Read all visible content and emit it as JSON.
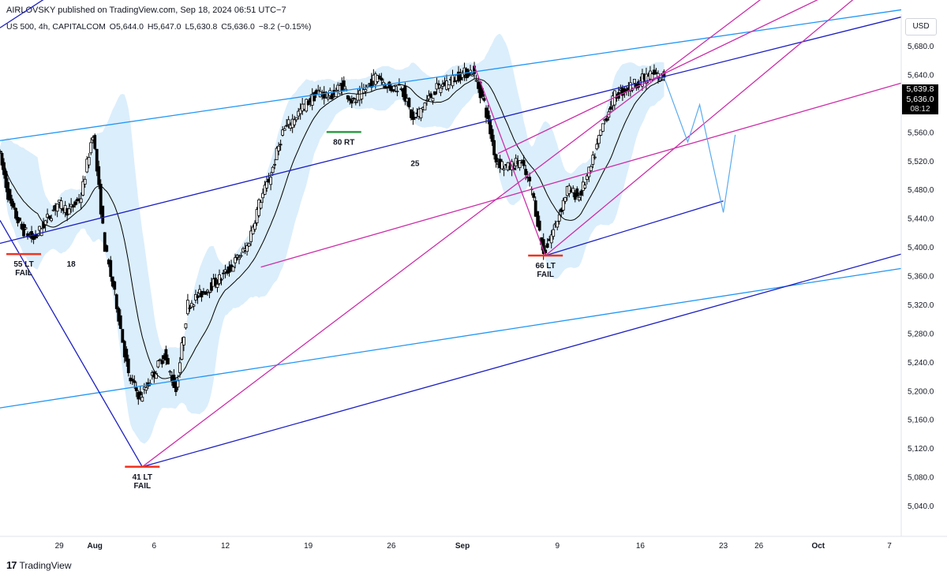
{
  "header": {
    "attribution": "AIRLOVSKY published on TradingView.com, Sep 18, 2024 06:51 UTC−7"
  },
  "symbol_bar": {
    "symbol": "US 500, 4h, CAPITALCOM",
    "open": "O5,644.0",
    "high": "H5,647.0",
    "low": "L5,630.8",
    "close": "C5,636.0",
    "change": "−8.2 (−0.15%)"
  },
  "currency": "USD",
  "price_tags": {
    "last_high": "5,639.8",
    "last_close": "5,636.0",
    "countdown": "08:12"
  },
  "footer": {
    "brand": "TradingView",
    "logo": "17"
  },
  "colors": {
    "candle": "#000000",
    "band_fill": "#dbeefc",
    "channel_light_blue": "#2196f3",
    "channel_dark_blue": "#1c1fc0",
    "magenta": "#cc2fa9",
    "level_red": "#f0331f",
    "level_green": "#2e9b43",
    "projection": "#5aabee"
  },
  "chart_data": {
    "type": "candlestick",
    "timeframe": "4h",
    "y_axis": {
      "ticks": [
        "5,680.0",
        "5,640.0",
        "5,600.0",
        "5,560.0",
        "5,520.0",
        "5,480.0",
        "5,440.0",
        "5,400.0",
        "5,360.0",
        "5,320.0",
        "5,280.0",
        "5,240.0",
        "5,200.0",
        "5,160.0",
        "5,120.0",
        "5,080.0",
        "5,040.0"
      ],
      "tick_values": [
        5680,
        5640,
        5600,
        5560,
        5520,
        5480,
        5440,
        5400,
        5360,
        5320,
        5280,
        5240,
        5200,
        5160,
        5120,
        5080,
        5040
      ],
      "ylim": [
        5014,
        5738
      ]
    },
    "x_axis": {
      "ticks": [
        "29",
        "Aug",
        "6",
        "12",
        "19",
        "26",
        "Sep",
        "9",
        "16",
        "23",
        "26",
        "Oct",
        "7"
      ],
      "tick_dates": [
        "2024-07-29",
        "2024-08-01",
        "2024-08-06",
        "2024-08-12",
        "2024-08-19",
        "2024-08-26",
        "2024-09-01",
        "2024-09-09",
        "2024-09-16",
        "2024-09-23",
        "2024-09-26",
        "2024-10-01",
        "2024-10-07"
      ],
      "xlim": [
        "2024-07-24",
        "2024-10-08"
      ]
    },
    "anchors": [
      {
        "date": "2024-07-24",
        "close": 5540
      },
      {
        "date": "2024-07-25",
        "close": 5460
      },
      {
        "date": "2024-07-26",
        "close": 5425
      },
      {
        "date": "2024-07-27",
        "close": 5410
      },
      {
        "date": "2024-07-29",
        "close": 5460
      },
      {
        "date": "2024-07-30",
        "close": 5450
      },
      {
        "date": "2024-07-31",
        "close": 5470
      },
      {
        "date": "2024-08-01",
        "close": 5560
      },
      {
        "date": "2024-08-02",
        "close": 5400
      },
      {
        "date": "2024-08-03",
        "close": 5320
      },
      {
        "date": "2024-08-04",
        "close": 5220
      },
      {
        "date": "2024-08-05",
        "close": 5190
      },
      {
        "date": "2024-08-06",
        "close": 5220
      },
      {
        "date": "2024-08-07",
        "close": 5250
      },
      {
        "date": "2024-08-08",
        "close": 5200
      },
      {
        "date": "2024-08-09",
        "close": 5320
      },
      {
        "date": "2024-08-12",
        "close": 5360
      },
      {
        "date": "2024-08-14",
        "close": 5400
      },
      {
        "date": "2024-08-15",
        "close": 5460
      },
      {
        "date": "2024-08-16",
        "close": 5500
      },
      {
        "date": "2024-08-17",
        "close": 5560
      },
      {
        "date": "2024-08-19",
        "close": 5600
      },
      {
        "date": "2024-08-20",
        "close": 5615
      },
      {
        "date": "2024-08-21",
        "close": 5610
      },
      {
        "date": "2024-08-22",
        "close": 5625
      },
      {
        "date": "2024-08-23",
        "close": 5600
      },
      {
        "date": "2024-08-25",
        "close": 5640
      },
      {
        "date": "2024-08-26",
        "close": 5620
      },
      {
        "date": "2024-08-27",
        "close": 5625
      },
      {
        "date": "2024-08-28",
        "close": 5575
      },
      {
        "date": "2024-08-29",
        "close": 5600
      },
      {
        "date": "2024-08-30",
        "close": 5620
      },
      {
        "date": "2024-09-01",
        "close": 5640
      },
      {
        "date": "2024-09-02",
        "close": 5645
      },
      {
        "date": "2024-09-03",
        "close": 5600
      },
      {
        "date": "2024-09-04",
        "close": 5520
      },
      {
        "date": "2024-09-05",
        "close": 5510
      },
      {
        "date": "2024-09-06",
        "close": 5520
      },
      {
        "date": "2024-09-07",
        "close": 5480
      },
      {
        "date": "2024-09-08",
        "close": 5390
      },
      {
        "date": "2024-09-09",
        "close": 5430
      },
      {
        "date": "2024-09-10",
        "close": 5480
      },
      {
        "date": "2024-09-11",
        "close": 5470
      },
      {
        "date": "2024-09-12",
        "close": 5510
      },
      {
        "date": "2024-09-13",
        "close": 5570
      },
      {
        "date": "2024-09-14",
        "close": 5610
      },
      {
        "date": "2024-09-16",
        "close": 5630
      },
      {
        "date": "2024-09-17",
        "close": 5640
      },
      {
        "date": "2024-09-18",
        "close": 5636
      }
    ],
    "ohlc_last": {
      "open": 5644.0,
      "high": 5647.0,
      "low": 5630.8,
      "close": 5636.0
    },
    "annotations": [
      {
        "text": "55 LT\nFAIL",
        "date": "2024-07-26",
        "price": 5390,
        "level_color": "red"
      },
      {
        "text": "18",
        "date": "2024-07-30",
        "price": 5390
      },
      {
        "text": "41 LT\nFAIL",
        "date": "2024-08-05",
        "price": 5094,
        "level_color": "red"
      },
      {
        "text": "80 RT",
        "date": "2024-08-22",
        "price": 5560,
        "level_color": "green"
      },
      {
        "text": "25",
        "date": "2024-08-28",
        "price": 5530
      },
      {
        "text": "66 LT\nFAIL",
        "date": "2024-09-08",
        "price": 5388,
        "level_color": "red"
      }
    ]
  }
}
